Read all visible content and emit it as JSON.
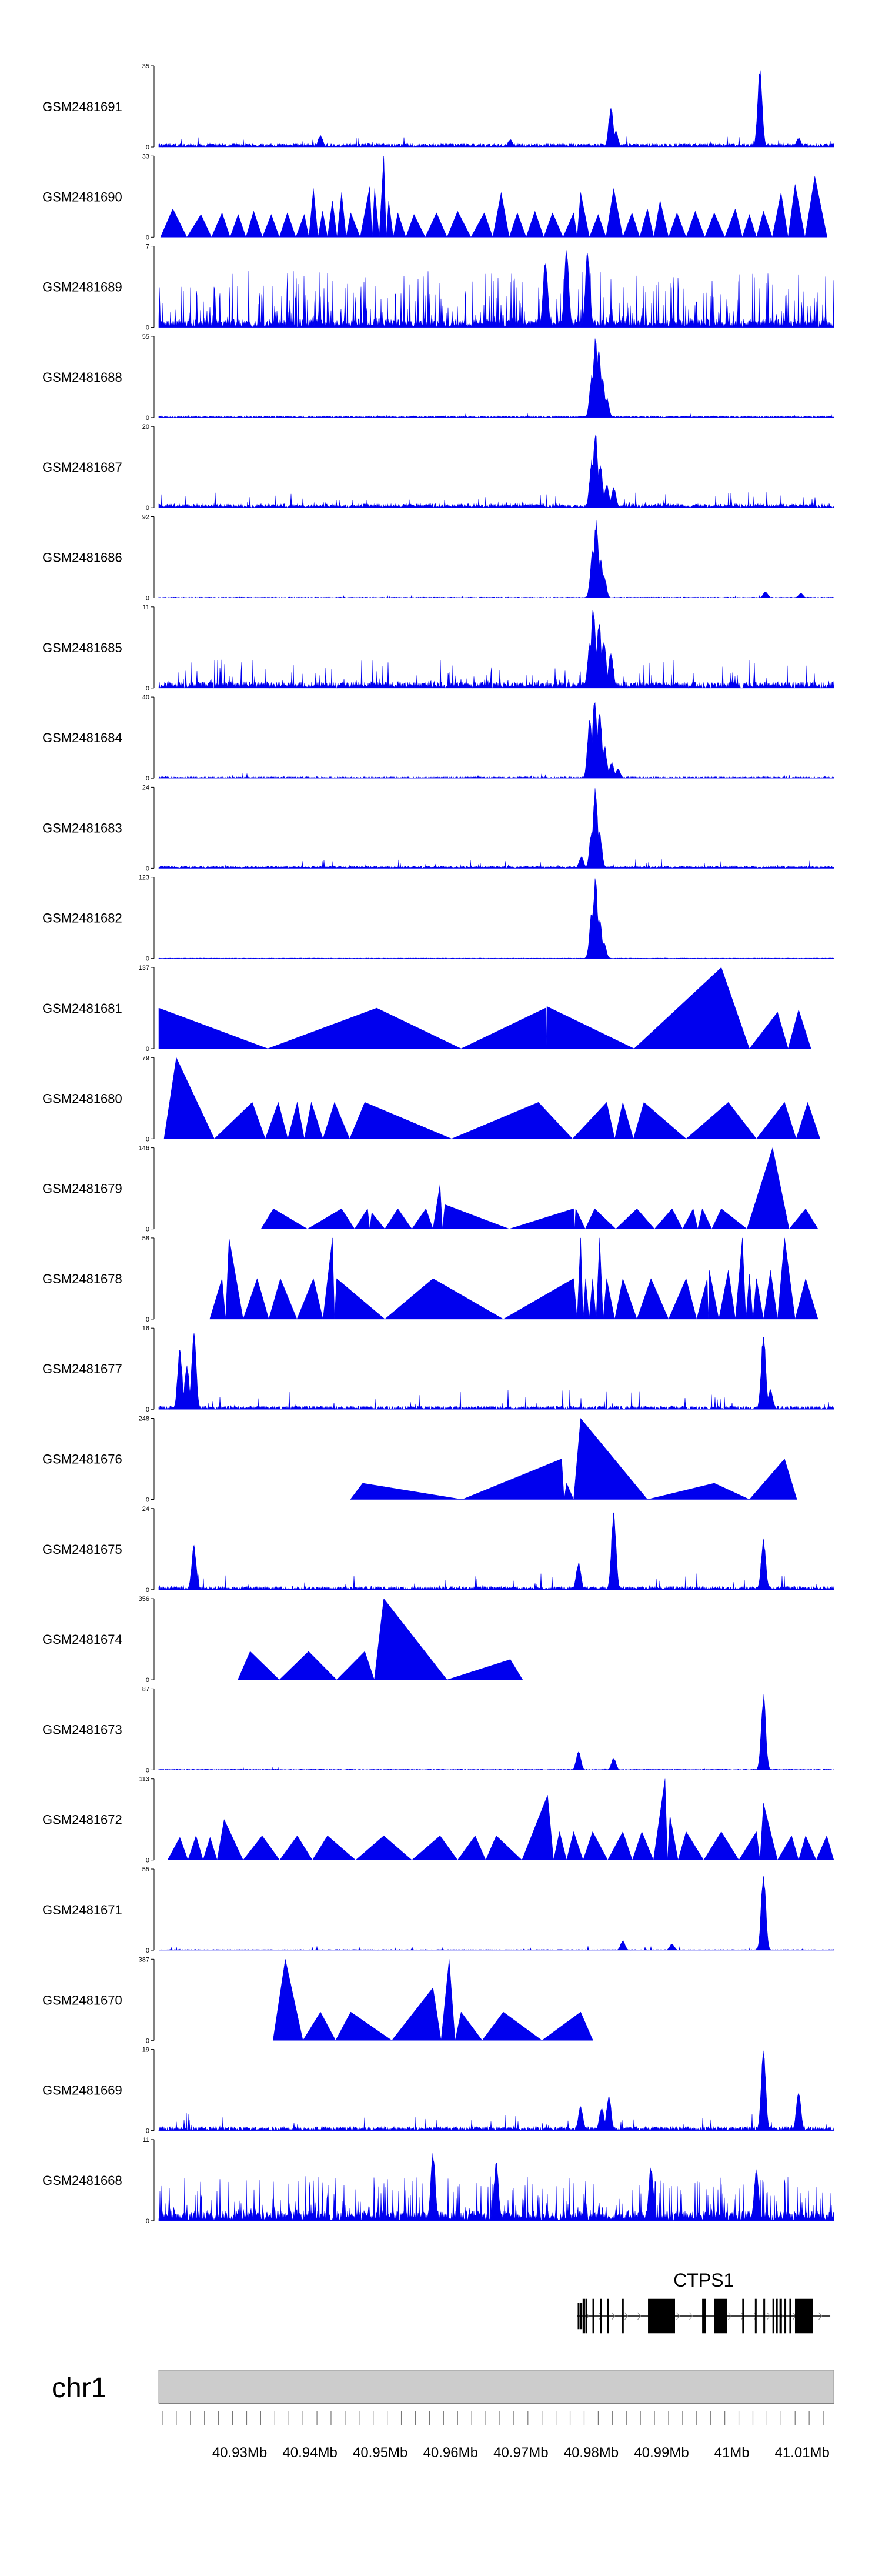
{
  "chart_data": {
    "type": "area",
    "title": "",
    "chromosome": "chr1",
    "x_unit": "Mb",
    "xlim": [
      40.9185,
      41.0145
    ],
    "x_ticks": [
      40.93,
      40.94,
      40.95,
      40.96,
      40.97,
      40.98,
      40.99,
      41.0,
      41.01
    ],
    "x_tick_labels": [
      "40.93Mb",
      "40.94Mb",
      "40.95Mb",
      "40.96Mb",
      "40.97Mb",
      "40.98Mb",
      "40.99Mb",
      "41Mb",
      "41.01Mb"
    ],
    "color": "#0000ee",
    "gene": {
      "name": "CTPS1",
      "start": 40.978,
      "end": 41.014,
      "exons": [
        [
          40.9781,
          40.9783
        ],
        [
          40.9784,
          40.9787
        ],
        [
          40.9788,
          40.9791
        ],
        [
          40.9792,
          40.9794
        ],
        [
          40.9802,
          40.9803
        ],
        [
          40.9813,
          40.9814
        ],
        [
          40.9823,
          40.9824
        ],
        [
          40.9844,
          40.9845
        ],
        [
          40.9881,
          40.9919
        ],
        [
          40.9958,
          40.9963
        ],
        [
          40.9975,
          40.9993
        ],
        [
          41.0015,
          41.0017
        ],
        [
          41.0033,
          41.0035
        ],
        [
          41.0045,
          41.0047
        ],
        [
          41.0058,
          41.006
        ],
        [
          41.0063,
          41.0065
        ],
        [
          41.0068,
          41.0071
        ],
        [
          41.0075,
          41.0077
        ],
        [
          41.0082,
          41.0084
        ],
        [
          41.009,
          41.0115
        ]
      ]
    },
    "tracks": [
      {
        "name": "GSM2481691",
        "ymax": 35,
        "style": "dense",
        "baseline": 0.05,
        "noise": 0.15,
        "spike_prob": 0.04,
        "peaks": [
          [
            40.9685,
            0.1
          ],
          [
            40.9828,
            0.5
          ],
          [
            40.9835,
            0.2
          ],
          [
            41.004,
            1.0
          ],
          [
            41.0095,
            0.12
          ],
          [
            40.9415,
            0.15
          ]
        ]
      },
      {
        "name": "GSM2481690",
        "ymax": 33,
        "style": "triangles",
        "peaks": [
          [
            40.9205,
            0.35
          ],
          [
            40.9245,
            0.28
          ],
          [
            40.9275,
            0.3
          ],
          [
            40.9298,
            0.28
          ],
          [
            40.932,
            0.32
          ],
          [
            40.9345,
            0.28
          ],
          [
            40.9368,
            0.3
          ],
          [
            40.9392,
            0.28
          ],
          [
            40.9405,
            0.6
          ],
          [
            40.9418,
            0.32
          ],
          [
            40.9432,
            0.45
          ],
          [
            40.9445,
            0.55
          ],
          [
            40.9458,
            0.3
          ],
          [
            40.9485,
            0.62
          ],
          [
            40.9492,
            0.6
          ],
          [
            40.9505,
            1.0
          ],
          [
            40.9512,
            0.45
          ],
          [
            40.9525,
            0.3
          ],
          [
            40.9548,
            0.28
          ],
          [
            40.958,
            0.3
          ],
          [
            40.961,
            0.32
          ],
          [
            40.9648,
            0.3
          ],
          [
            40.9672,
            0.55
          ],
          [
            40.9695,
            0.3
          ],
          [
            40.972,
            0.32
          ],
          [
            40.9745,
            0.3
          ],
          [
            40.9775,
            0.3
          ],
          [
            40.9785,
            0.55
          ],
          [
            40.981,
            0.28
          ],
          [
            40.9832,
            0.6
          ],
          [
            40.9858,
            0.3
          ],
          [
            40.988,
            0.35
          ],
          [
            40.9898,
            0.45
          ],
          [
            40.9922,
            0.3
          ],
          [
            40.9948,
            0.32
          ],
          [
            40.9975,
            0.3
          ],
          [
            41.0005,
            0.35
          ],
          [
            41.0025,
            0.28
          ],
          [
            41.0045,
            0.32
          ],
          [
            41.007,
            0.55
          ],
          [
            41.009,
            0.65
          ],
          [
            41.0118,
            0.75
          ]
        ]
      },
      {
        "name": "GSM2481689",
        "ymax": 7,
        "style": "dense",
        "baseline": 0.1,
        "noise": 0.7,
        "spike_prob": 0.35,
        "peaks": [
          [
            40.9735,
            0.9
          ],
          [
            40.9765,
            1.0
          ],
          [
            40.9795,
            0.95
          ]
        ]
      },
      {
        "name": "GSM2481688",
        "ymax": 55,
        "style": "dense",
        "baseline": 0.02,
        "noise": 0.05,
        "spike_prob": 0.02,
        "peaks": [
          [
            40.9806,
            1.0
          ],
          [
            40.9811,
            0.85
          ],
          [
            40.9801,
            0.55
          ],
          [
            40.9816,
            0.5
          ],
          [
            40.9822,
            0.25
          ]
        ]
      },
      {
        "name": "GSM2481687",
        "ymax": 20,
        "style": "dense",
        "baseline": 0.05,
        "noise": 0.2,
        "spike_prob": 0.08,
        "peaks": [
          [
            40.9806,
            1.0
          ],
          [
            40.9801,
            0.6
          ],
          [
            40.9813,
            0.55
          ],
          [
            40.9822,
            0.3
          ],
          [
            40.9832,
            0.25
          ]
        ]
      },
      {
        "name": "GSM2481686",
        "ymax": 92,
        "style": "dense",
        "baseline": 0.01,
        "noise": 0.03,
        "spike_prob": 0.01,
        "peaks": [
          [
            40.9807,
            1.0
          ],
          [
            40.9802,
            0.6
          ],
          [
            40.9813,
            0.5
          ],
          [
            40.9818,
            0.3
          ],
          [
            41.0048,
            0.08
          ],
          [
            41.0098,
            0.06
          ]
        ]
      },
      {
        "name": "GSM2481685",
        "ymax": 11,
        "style": "dense",
        "baseline": 0.08,
        "noise": 0.35,
        "spike_prob": 0.15,
        "peaks": [
          [
            40.9803,
            1.0
          ],
          [
            40.9811,
            0.85
          ],
          [
            40.9818,
            0.6
          ],
          [
            40.9798,
            0.55
          ],
          [
            40.9828,
            0.45
          ]
        ]
      },
      {
        "name": "GSM2481684",
        "ymax": 40,
        "style": "dense",
        "baseline": 0.02,
        "noise": 0.06,
        "spike_prob": 0.03,
        "peaks": [
          [
            40.9805,
            1.0
          ],
          [
            40.9798,
            0.75
          ],
          [
            40.9812,
            0.85
          ],
          [
            40.9819,
            0.4
          ],
          [
            40.9829,
            0.2
          ],
          [
            40.9838,
            0.12
          ]
        ]
      },
      {
        "name": "GSM2481683",
        "ymax": 24,
        "style": "dense",
        "baseline": 0.03,
        "noise": 0.12,
        "spike_prob": 0.05,
        "peaks": [
          [
            40.9806,
            1.0
          ],
          [
            40.9801,
            0.5
          ],
          [
            40.9812,
            0.45
          ],
          [
            40.9786,
            0.15
          ]
        ]
      },
      {
        "name": "GSM2481682",
        "ymax": 123,
        "style": "dense",
        "baseline": 0.005,
        "noise": 0.01,
        "spike_prob": 0.005,
        "peaks": [
          [
            40.9806,
            1.0
          ],
          [
            40.9801,
            0.6
          ],
          [
            40.9812,
            0.5
          ],
          [
            40.9818,
            0.2
          ]
        ]
      },
      {
        "name": "GSM2481681",
        "ymax": 137,
        "style": "triangles",
        "peaks": [
          [
            40.9185,
            0.5
          ],
          [
            40.9495,
            0.5
          ],
          [
            40.9735,
            0.5
          ],
          [
            40.9737,
            0.52
          ],
          [
            40.9985,
            1.0
          ],
          [
            41.0065,
            0.45
          ],
          [
            41.0095,
            0.48
          ]
        ]
      },
      {
        "name": "GSM2481680",
        "ymax": 79,
        "style": "triangles",
        "peaks": [
          [
            40.921,
            1.0
          ],
          [
            40.9318,
            0.45
          ],
          [
            40.9355,
            0.45
          ],
          [
            40.9382,
            0.45
          ],
          [
            40.9402,
            0.45
          ],
          [
            40.9435,
            0.45
          ],
          [
            40.9478,
            0.45
          ],
          [
            40.9725,
            0.45
          ],
          [
            40.9822,
            0.45
          ],
          [
            40.9845,
            0.45
          ],
          [
            40.9875,
            0.45
          ],
          [
            40.9995,
            0.45
          ],
          [
            41.0075,
            0.45
          ],
          [
            41.0108,
            0.45
          ]
        ]
      },
      {
        "name": "GSM2481679",
        "ymax": 146,
        "style": "triangles",
        "peaks": [
          [
            40.9348,
            0.25
          ],
          [
            40.9445,
            0.25
          ],
          [
            40.9482,
            0.25
          ],
          [
            40.9488,
            0.2
          ],
          [
            40.9525,
            0.25
          ],
          [
            40.9565,
            0.25
          ],
          [
            40.9585,
            0.55
          ],
          [
            40.9592,
            0.3
          ],
          [
            40.9775,
            0.25
          ],
          [
            40.9778,
            0.25
          ],
          [
            40.9805,
            0.25
          ],
          [
            40.9865,
            0.25
          ],
          [
            40.9915,
            0.25
          ],
          [
            40.9945,
            0.25
          ],
          [
            40.9958,
            0.25
          ],
          [
            40.9985,
            0.25
          ],
          [
            41.0058,
            1.0
          ],
          [
            41.0105,
            0.25
          ]
        ]
      },
      {
        "name": "GSM2481678",
        "ymax": 58,
        "style": "triangles",
        "peaks": [
          [
            40.9275,
            0.5
          ],
          [
            40.9285,
            1.0
          ],
          [
            40.9325,
            0.5
          ],
          [
            40.9358,
            0.5
          ],
          [
            40.9405,
            0.5
          ],
          [
            40.9432,
            1.0
          ],
          [
            40.9438,
            0.5
          ],
          [
            40.9575,
            0.5
          ],
          [
            40.9775,
            0.5
          ],
          [
            40.9785,
            1.0
          ],
          [
            40.9792,
            0.5
          ],
          [
            40.9802,
            0.5
          ],
          [
            40.9812,
            1.0
          ],
          [
            40.9822,
            0.5
          ],
          [
            40.9845,
            0.5
          ],
          [
            40.9885,
            0.5
          ],
          [
            40.9935,
            0.5
          ],
          [
            40.9965,
            0.5
          ],
          [
            40.9968,
            0.6
          ],
          [
            40.9995,
            0.6
          ],
          [
            41.0015,
            1.0
          ],
          [
            41.0025,
            0.55
          ],
          [
            41.0035,
            0.5
          ],
          [
            41.0055,
            0.6
          ],
          [
            41.0075,
            1.0
          ],
          [
            41.0105,
            0.5
          ]
        ]
      },
      {
        "name": "GSM2481677",
        "ymax": 16,
        "style": "dense",
        "baseline": 0.04,
        "noise": 0.25,
        "spike_prob": 0.06,
        "peaks": [
          [
            40.9215,
            0.75
          ],
          [
            40.9225,
            0.55
          ],
          [
            40.9235,
            0.95
          ],
          [
            41.0045,
            0.95
          ],
          [
            41.0055,
            0.25
          ]
        ]
      },
      {
        "name": "GSM2481676",
        "ymax": 248,
        "style": "triangles",
        "peaks": [
          [
            40.9475,
            0.2
          ],
          [
            40.9758,
            0.5
          ],
          [
            40.9765,
            0.2
          ],
          [
            40.9785,
            1.0
          ],
          [
            40.9975,
            0.2
          ],
          [
            41.0075,
            0.5
          ]
        ]
      },
      {
        "name": "GSM2481675",
        "ymax": 24,
        "style": "dense",
        "baseline": 0.04,
        "noise": 0.2,
        "spike_prob": 0.06,
        "peaks": [
          [
            40.9832,
            1.0
          ],
          [
            40.9782,
            0.35
          ],
          [
            40.9235,
            0.55
          ],
          [
            41.0045,
            0.65
          ]
        ]
      },
      {
        "name": "GSM2481674",
        "ymax": 356,
        "style": "triangles",
        "peaks": [
          [
            40.9315,
            0.35
          ],
          [
            40.9398,
            0.35
          ],
          [
            40.9478,
            0.35
          ],
          [
            40.9505,
            1.0
          ],
          [
            40.9685,
            0.25
          ]
        ]
      },
      {
        "name": "GSM2481673",
        "ymax": 87,
        "style": "dense",
        "baseline": 0.01,
        "noise": 0.04,
        "spike_prob": 0.02,
        "peaks": [
          [
            40.9782,
            0.25
          ],
          [
            40.9832,
            0.15
          ],
          [
            41.0045,
            0.95
          ]
        ]
      },
      {
        "name": "GSM2481672",
        "ymax": 113,
        "style": "triangles",
        "peaks": [
          [
            40.9215,
            0.28
          ],
          [
            40.9238,
            0.3
          ],
          [
            40.9258,
            0.28
          ],
          [
            40.9278,
            0.5
          ],
          [
            40.9332,
            0.3
          ],
          [
            40.9382,
            0.3
          ],
          [
            40.9425,
            0.3
          ],
          [
            40.9505,
            0.3
          ],
          [
            40.9585,
            0.3
          ],
          [
            40.9635,
            0.3
          ],
          [
            40.9665,
            0.3
          ],
          [
            40.9738,
            0.8
          ],
          [
            40.9755,
            0.35
          ],
          [
            40.9775,
            0.35
          ],
          [
            40.9802,
            0.35
          ],
          [
            40.9845,
            0.35
          ],
          [
            40.9872,
            0.35
          ],
          [
            40.9905,
            1.0
          ],
          [
            40.9912,
            0.55
          ],
          [
            40.9935,
            0.35
          ],
          [
            40.9985,
            0.35
          ],
          [
            41.0035,
            0.35
          ],
          [
            41.0045,
            0.7
          ],
          [
            41.0085,
            0.3
          ],
          [
            41.0105,
            0.3
          ],
          [
            41.0135,
            0.3
          ]
        ]
      },
      {
        "name": "GSM2481671",
        "ymax": 55,
        "style": "dense",
        "baseline": 0.01,
        "noise": 0.05,
        "spike_prob": 0.03,
        "peaks": [
          [
            41.0045,
            1.0
          ],
          [
            40.9845,
            0.12
          ],
          [
            40.9915,
            0.08
          ]
        ]
      },
      {
        "name": "GSM2481670",
        "ymax": 387,
        "style": "triangles",
        "peaks": [
          [
            40.9365,
            1.0
          ],
          [
            40.9415,
            0.35
          ],
          [
            40.9458,
            0.35
          ],
          [
            40.9575,
            0.65
          ],
          [
            40.9598,
            1.0
          ],
          [
            40.9615,
            0.35
          ],
          [
            40.9675,
            0.35
          ],
          [
            40.9785,
            0.35
          ]
        ]
      },
      {
        "name": "GSM2481669",
        "ymax": 19,
        "style": "dense",
        "baseline": 0.05,
        "noise": 0.22,
        "spike_prob": 0.07,
        "peaks": [
          [
            41.0045,
            1.0
          ],
          [
            40.9825,
            0.45
          ],
          [
            40.9785,
            0.3
          ],
          [
            40.9815,
            0.3
          ],
          [
            41.0095,
            0.5
          ]
        ]
      },
      {
        "name": "GSM2481668",
        "ymax": 11,
        "style": "dense",
        "baseline": 0.12,
        "noise": 0.55,
        "spike_prob": 0.3,
        "peaks": [
          [
            40.9575,
            0.85
          ],
          [
            40.9665,
            0.75
          ],
          [
            40.9885,
            0.7
          ],
          [
            41.0035,
            0.65
          ]
        ]
      }
    ]
  }
}
